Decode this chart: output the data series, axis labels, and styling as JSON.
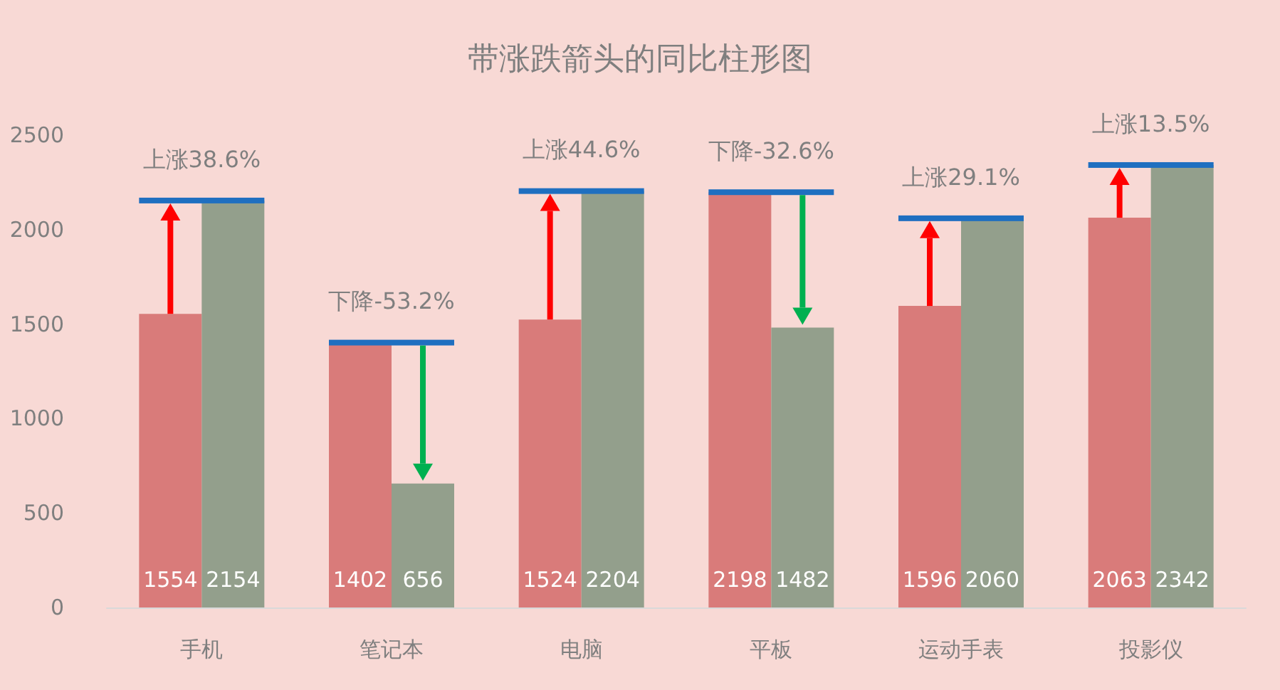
{
  "chart_data": {
    "type": "bar",
    "title": "带涨跌箭头的同比柱形图",
    "categories": [
      "手机",
      "笔记本",
      "电脑",
      "平板",
      "运动手表",
      "投影仪"
    ],
    "series": [
      {
        "color": "#d97b7a",
        "values": [
          1554,
          1402,
          1524,
          2198,
          1596,
          2063
        ]
      },
      {
        "color": "#939f8c",
        "values": [
          2154,
          656,
          2204,
          1482,
          2060,
          2342
        ]
      }
    ],
    "ylim": [
      0,
      2500
    ],
    "yticks": [
      0,
      500,
      1000,
      1500,
      2000,
      2500
    ],
    "grid": false,
    "data_labels": true,
    "annotations": [
      {
        "text": "上涨38.6%",
        "x": "手机",
        "y": 2154
      },
      {
        "text": "下降-53.2%",
        "x": "笔记本",
        "y": 1402
      },
      {
        "text": "上涨44.6%",
        "x": "电脑",
        "y": 2204
      },
      {
        "text": "下降-32.6%",
        "x": "平板",
        "y": 2198
      },
      {
        "text": "上涨29.1%",
        "x": "运动手表",
        "y": 2060
      },
      {
        "text": "上涨13.5%",
        "x": "投影仪",
        "y": 2342
      }
    ]
  }
}
